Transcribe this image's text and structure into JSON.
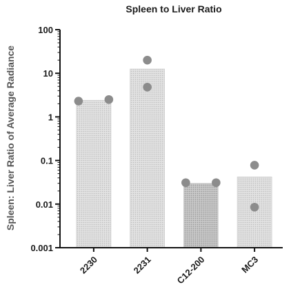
{
  "chart_data": {
    "type": "bar",
    "title": "Spleen to Liver Ratio",
    "xlabel": "",
    "ylabel": "Spleen: Liver Ratio of Average Radiance",
    "yscale": "log",
    "ylim": [
      0.001,
      100
    ],
    "yticks": [
      0.001,
      0.01,
      0.1,
      1,
      10,
      100
    ],
    "ytick_labels": [
      "0.001",
      "0.01",
      "0.1",
      "1",
      "10",
      "100"
    ],
    "categories": [
      "2230",
      "2231",
      "C12-200",
      "MC3"
    ],
    "values": [
      2.4,
      12.5,
      0.03,
      0.042
    ],
    "points": [
      [
        2.3,
        2.5
      ],
      [
        20,
        4.8
      ],
      [
        0.031,
        0.031
      ],
      [
        0.078,
        0.0085
      ]
    ],
    "bar_colors": [
      "#d6d6d6",
      "#d6d6d6",
      "#b8b8b8",
      "#d6d6d6"
    ],
    "point_color": "#8c8c8c",
    "grid": false,
    "legend": "none"
  }
}
